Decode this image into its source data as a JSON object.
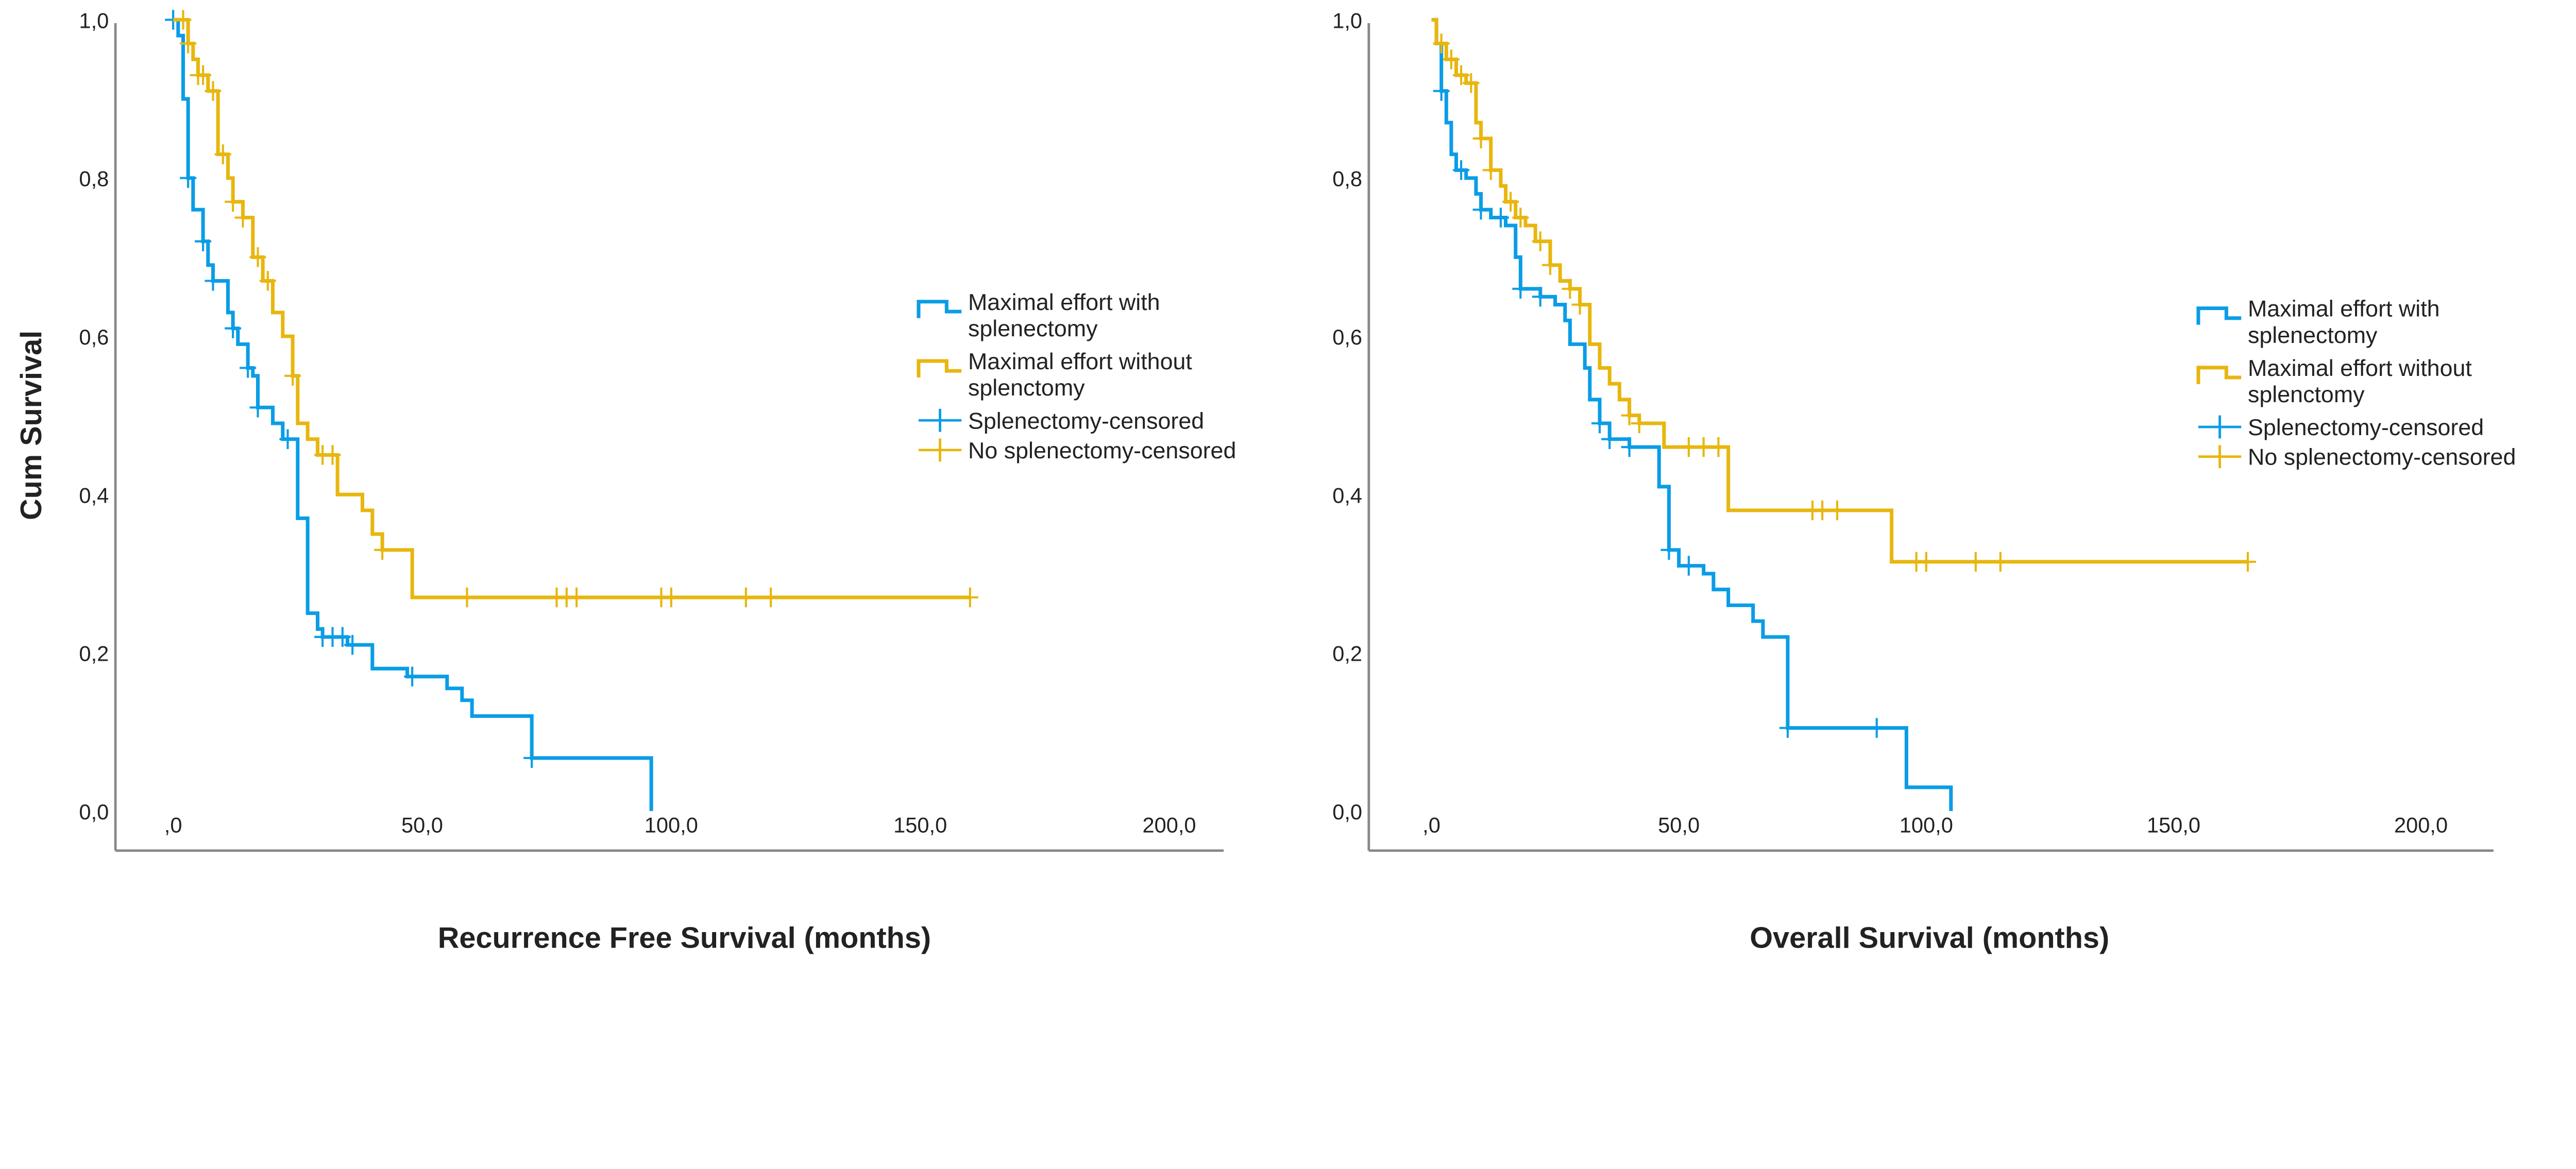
{
  "colors": {
    "splenectomy": "#0a9de6",
    "no_splenectomy": "#e8b60e",
    "axis": "#888888"
  },
  "y_axis_title": "Cum Survival",
  "legend": [
    {
      "label": "Maximal effort with splenectomy",
      "lines": [
        "Maximal effort with",
        "splenectomy"
      ],
      "kind": "line",
      "color": "#0a9de6"
    },
    {
      "label": "Maximal effort without splenctomy",
      "lines": [
        "Maximal effort without",
        "splenctomy"
      ],
      "kind": "line",
      "color": "#e8b60e"
    },
    {
      "label": "Splenectomy-censored",
      "lines": [
        "Splenectomy-censored"
      ],
      "kind": "censor",
      "color": "#0a9de6"
    },
    {
      "label": "No splenectomy-censored",
      "lines": [
        "No splenectomy-censored"
      ],
      "kind": "censor",
      "color": "#e8b60e"
    }
  ],
  "chart_data": [
    {
      "type": "line",
      "subtype": "kaplan-meier step",
      "xlabel": "Recurrence Free Survival (months)",
      "ylabel": "Cum Survival",
      "xlim": [
        0,
        200
      ],
      "ylim": [
        0,
        1
      ],
      "x_ticks": [
        ",0",
        "50,0",
        "100,0",
        "150,0",
        "200,0"
      ],
      "y_ticks": [
        "0,0",
        "0,2",
        "0,4",
        "0,6",
        "0,8",
        "1,0"
      ],
      "grid": false,
      "legend_position": "right",
      "series": [
        {
          "name": "Maximal effort with splenectomy",
          "color": "#0a9de6",
          "steps": [
            [
              0,
              1
            ],
            [
              1,
              0.98
            ],
            [
              2,
              0.9
            ],
            [
              3,
              0.8
            ],
            [
              4,
              0.76
            ],
            [
              6,
              0.72
            ],
            [
              7,
              0.69
            ],
            [
              8,
              0.67
            ],
            [
              11,
              0.63
            ],
            [
              12,
              0.61
            ],
            [
              13,
              0.59
            ],
            [
              15,
              0.56
            ],
            [
              16,
              0.55
            ],
            [
              17,
              0.51
            ],
            [
              20,
              0.49
            ],
            [
              22,
              0.47
            ],
            [
              25,
              0.37
            ],
            [
              27,
              0.25
            ],
            [
              29,
              0.23
            ],
            [
              30,
              0.22
            ],
            [
              35,
              0.21
            ],
            [
              40,
              0.18
            ],
            [
              47,
              0.17
            ],
            [
              55,
              0.155
            ],
            [
              58,
              0.14
            ],
            [
              60,
              0.12
            ],
            [
              72,
              0.067
            ],
            [
              96,
              0
            ]
          ],
          "end": 96,
          "censored": [
            0,
            3,
            6,
            8,
            12,
            15,
            17,
            23,
            30,
            32,
            34,
            36,
            48,
            72
          ]
        },
        {
          "name": "Maximal effort without splenctomy",
          "color": "#e8b60e",
          "steps": [
            [
              0,
              1
            ],
            [
              3,
              0.97
            ],
            [
              4,
              0.95
            ],
            [
              5,
              0.93
            ],
            [
              7,
              0.91
            ],
            [
              9,
              0.83
            ],
            [
              11,
              0.8
            ],
            [
              12,
              0.77
            ],
            [
              14,
              0.75
            ],
            [
              16,
              0.7
            ],
            [
              18,
              0.67
            ],
            [
              20,
              0.63
            ],
            [
              22,
              0.6
            ],
            [
              24,
              0.55
            ],
            [
              25,
              0.49
            ],
            [
              27,
              0.47
            ],
            [
              29,
              0.45
            ],
            [
              33,
              0.4
            ],
            [
              38,
              0.38
            ],
            [
              40,
              0.35
            ],
            [
              42,
              0.33
            ],
            [
              48,
              0.27
            ]
          ],
          "end": 160,
          "censored": [
            2,
            3,
            5,
            6,
            8,
            10,
            12,
            14,
            17,
            19,
            24,
            30,
            32,
            42,
            59,
            77,
            79,
            81,
            98,
            100,
            115,
            120,
            160
          ]
        }
      ]
    },
    {
      "type": "line",
      "subtype": "kaplan-meier step",
      "xlabel": "Overall Survival (months)",
      "ylabel": "",
      "xlim": [
        0,
        200
      ],
      "ylim": [
        0,
        1
      ],
      "x_ticks": [
        ",0",
        "50,0",
        "100,0",
        "150,0",
        "200,0"
      ],
      "y_ticks": [
        "0,0",
        "0,2",
        "0,4",
        "0,6",
        "0,8",
        "1,0"
      ],
      "grid": false,
      "legend_position": "right",
      "series": [
        {
          "name": "Maximal effort with splenectomy",
          "color": "#0a9de6",
          "steps": [
            [
              0,
              1
            ],
            [
              1,
              0.97
            ],
            [
              2,
              0.91
            ],
            [
              3,
              0.87
            ],
            [
              4,
              0.83
            ],
            [
              5,
              0.81
            ],
            [
              7,
              0.8
            ],
            [
              9,
              0.78
            ],
            [
              10,
              0.76
            ],
            [
              12,
              0.75
            ],
            [
              15,
              0.74
            ],
            [
              17,
              0.7
            ],
            [
              18,
              0.66
            ],
            [
              22,
              0.65
            ],
            [
              25,
              0.64
            ],
            [
              27,
              0.62
            ],
            [
              28,
              0.59
            ],
            [
              31,
              0.56
            ],
            [
              32,
              0.52
            ],
            [
              34,
              0.49
            ],
            [
              36,
              0.47
            ],
            [
              40,
              0.46
            ],
            [
              46,
              0.41
            ],
            [
              48,
              0.33
            ],
            [
              50,
              0.31
            ],
            [
              55,
              0.3
            ],
            [
              57,
              0.28
            ],
            [
              60,
              0.26
            ],
            [
              65,
              0.24
            ],
            [
              67,
              0.22
            ],
            [
              72,
              0.105
            ],
            [
              96,
              0.03
            ],
            [
              105,
              0
            ]
          ],
          "end": 105,
          "censored": [
            2,
            6,
            10,
            14,
            18,
            22,
            34,
            36,
            40,
            48,
            52,
            72,
            90
          ]
        },
        {
          "name": "Maximal effort without splenctomy",
          "color": "#e8b60e",
          "steps": [
            [
              0,
              1
            ],
            [
              1,
              0.97
            ],
            [
              3,
              0.95
            ],
            [
              5,
              0.93
            ],
            [
              7,
              0.92
            ],
            [
              9,
              0.87
            ],
            [
              10,
              0.85
            ],
            [
              12,
              0.81
            ],
            [
              14,
              0.79
            ],
            [
              15,
              0.77
            ],
            [
              17,
              0.75
            ],
            [
              19,
              0.74
            ],
            [
              21,
              0.72
            ],
            [
              24,
              0.69
            ],
            [
              26,
              0.67
            ],
            [
              28,
              0.66
            ],
            [
              30,
              0.64
            ],
            [
              32,
              0.59
            ],
            [
              34,
              0.56
            ],
            [
              36,
              0.54
            ],
            [
              38,
              0.52
            ],
            [
              40,
              0.5
            ],
            [
              42,
              0.49
            ],
            [
              47,
              0.46
            ],
            [
              60,
              0.38
            ],
            [
              93,
              0.315
            ]
          ],
          "end": 165,
          "censored": [
            2,
            4,
            6,
            8,
            10,
            12,
            16,
            18,
            22,
            24,
            28,
            30,
            40,
            42,
            52,
            55,
            58,
            77,
            79,
            82,
            98,
            100,
            110,
            115,
            165
          ]
        }
      ]
    }
  ]
}
